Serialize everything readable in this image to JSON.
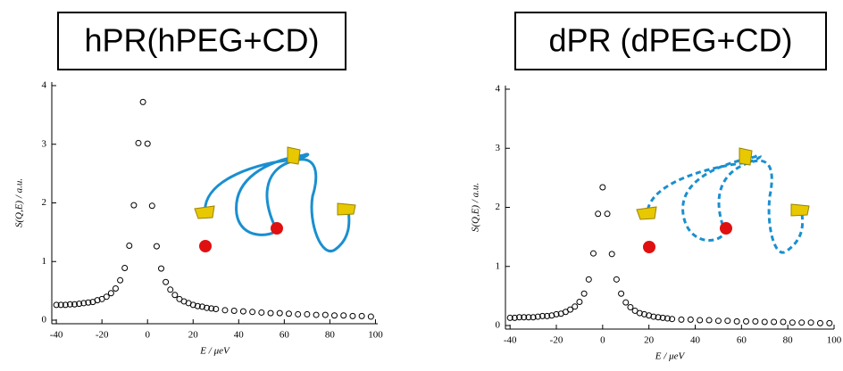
{
  "chart_data": [
    {
      "type": "scatter",
      "title": "hPR(hPEG+CD)",
      "x_label": "E / μeV",
      "y_label": "S(Q,E) / a.u.",
      "color": "#000000",
      "xlim": [
        -42,
        101
      ],
      "ylim": [
        0,
        4
      ],
      "xticks": [
        -40,
        -20,
        0,
        20,
        40,
        60,
        80,
        100
      ],
      "yticks": [
        0,
        1,
        2,
        3,
        4
      ],
      "x": [
        -40,
        -38,
        -36,
        -34,
        -32,
        -30,
        -28,
        -26,
        -24,
        -22,
        -20,
        -18,
        -16,
        -14,
        -12,
        -10,
        -8,
        -6,
        -4,
        -2,
        0,
        2,
        4,
        6,
        8,
        10,
        12,
        14,
        16,
        18,
        20,
        22,
        24,
        26,
        28,
        30,
        34,
        38,
        42,
        46,
        50,
        54,
        58,
        62,
        66,
        70,
        74,
        78,
        82,
        86,
        90,
        94,
        98
      ],
      "values": [
        0.26,
        0.26,
        0.26,
        0.27,
        0.27,
        0.28,
        0.29,
        0.3,
        0.31,
        0.34,
        0.36,
        0.4,
        0.46,
        0.54,
        0.68,
        0.89,
        1.27,
        1.96,
        3.02,
        3.72,
        3.01,
        1.95,
        1.26,
        0.88,
        0.65,
        0.52,
        0.43,
        0.36,
        0.32,
        0.29,
        0.26,
        0.24,
        0.23,
        0.21,
        0.2,
        0.19,
        0.17,
        0.16,
        0.15,
        0.14,
        0.13,
        0.12,
        0.12,
        0.11,
        0.1,
        0.1,
        0.09,
        0.09,
        0.08,
        0.08,
        0.07,
        0.07,
        0.06
      ]
    },
    {
      "type": "scatter",
      "title": "dPR (dPEG+CD)",
      "x_label": "E / μeV",
      "y_label": "S(Q,E) / a.u.",
      "color": "#000000",
      "xlim": [
        -42,
        100
      ],
      "ylim": [
        0,
        4
      ],
      "xticks": [
        -40,
        -20,
        0,
        20,
        40,
        60,
        80,
        100
      ],
      "yticks": [
        0,
        1,
        2,
        3,
        4
      ],
      "x": [
        -40,
        -38,
        -36,
        -34,
        -32,
        -30,
        -28,
        -26,
        -24,
        -22,
        -20,
        -18,
        -16,
        -14,
        -12,
        -10,
        -8,
        -6,
        -4,
        -2,
        0,
        2,
        4,
        6,
        8,
        10,
        12,
        14,
        16,
        18,
        20,
        22,
        24,
        26,
        28,
        30,
        34,
        38,
        42,
        46,
        50,
        54,
        58,
        62,
        66,
        70,
        74,
        78,
        82,
        86,
        90,
        94,
        98
      ],
      "values": [
        0.13,
        0.13,
        0.14,
        0.14,
        0.14,
        0.14,
        0.15,
        0.16,
        0.16,
        0.17,
        0.19,
        0.2,
        0.23,
        0.27,
        0.32,
        0.4,
        0.54,
        0.78,
        1.22,
        1.89,
        2.34,
        1.89,
        1.21,
        0.78,
        0.54,
        0.39,
        0.31,
        0.25,
        0.21,
        0.19,
        0.17,
        0.15,
        0.14,
        0.13,
        0.12,
        0.11,
        0.1,
        0.1,
        0.09,
        0.09,
        0.08,
        0.08,
        0.07,
        0.07,
        0.07,
        0.06,
        0.06,
        0.06,
        0.05,
        0.05,
        0.05,
        0.04,
        0.04
      ]
    }
  ]
}
